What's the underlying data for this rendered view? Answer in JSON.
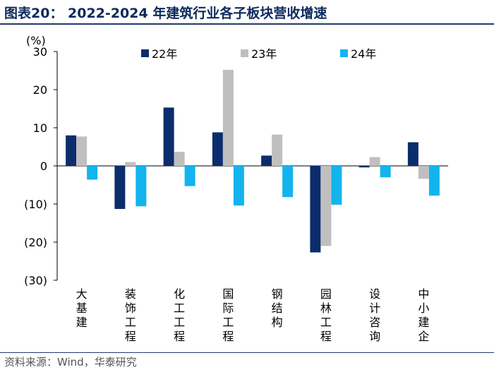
{
  "title": "图表20： 2022-2024 年建筑行业各子板块营收增速",
  "source": "资料来源：Wind，华泰研究",
  "colors": {
    "s22": "#0b2d6c",
    "s23": "#bfbfbf",
    "s24": "#13b4ee",
    "title": "#0d2a5c",
    "rule": "#1f3a6e"
  },
  "chart_data": {
    "type": "bar",
    "title": "2022-2024 年建筑行业各子板块营收增速",
    "ylabel": "(%)",
    "ylim": [
      -30,
      30
    ],
    "yticks": [
      30,
      20,
      10,
      0,
      -10,
      -20,
      -30
    ],
    "ytick_labels": [
      "30",
      "20",
      "10",
      "0",
      "(10)",
      "(20)",
      "(30)"
    ],
    "categories": [
      "大基建",
      "装饰工程",
      "化工工程",
      "国际工程",
      "钢结构",
      "园林工程",
      "设计咨询",
      "中小建企"
    ],
    "series": [
      {
        "name": "22年",
        "values": [
          8.0,
          -11.3,
          15.3,
          8.8,
          2.7,
          -22.7,
          -0.4,
          6.2
        ]
      },
      {
        "name": "23年",
        "values": [
          7.7,
          1.0,
          3.7,
          25.2,
          8.2,
          -21.0,
          2.3,
          -3.4
        ]
      },
      {
        "name": "24年",
        "values": [
          -3.6,
          -10.6,
          -5.3,
          -10.4,
          -8.2,
          -10.2,
          -3.0,
          -7.8
        ]
      }
    ],
    "legend_position": "top"
  }
}
